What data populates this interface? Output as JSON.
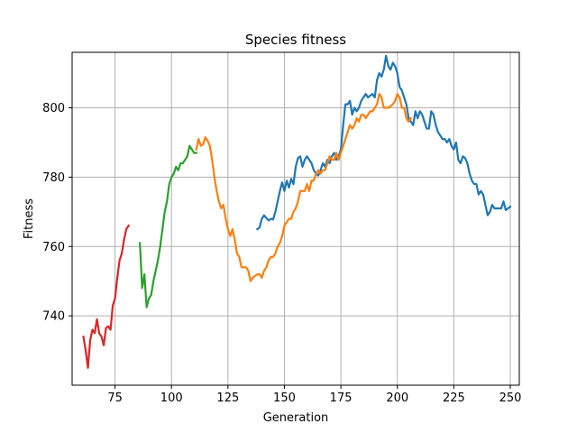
{
  "chart_data": {
    "type": "line",
    "title": "Species fitness",
    "xlabel": "Generation",
    "ylabel": "Fitness",
    "xlim": [
      56,
      254
    ],
    "ylim": [
      720,
      816
    ],
    "xticks": [
      75,
      100,
      125,
      150,
      175,
      200,
      225,
      250
    ],
    "yticks": [
      740,
      760,
      780,
      800
    ],
    "grid": true,
    "legend": "none",
    "series": [
      {
        "color": "#1f77b4",
        "points": [
          [
            138,
            765
          ],
          [
            139,
            765.5
          ],
          [
            140,
            768
          ],
          [
            141,
            769
          ],
          [
            142,
            768.2
          ],
          [
            143,
            767.5
          ],
          [
            144,
            768
          ],
          [
            145,
            767.8
          ],
          [
            146,
            770
          ],
          [
            147,
            773
          ],
          [
            148,
            776
          ],
          [
            149,
            778.5
          ],
          [
            150,
            776
          ],
          [
            151,
            779
          ],
          [
            152,
            777
          ],
          [
            153,
            779.5
          ],
          [
            154,
            778
          ],
          [
            155,
            783
          ],
          [
            156,
            785.5
          ],
          [
            157,
            786
          ],
          [
            158,
            783
          ],
          [
            159,
            785
          ],
          [
            160,
            786
          ],
          [
            161,
            785
          ],
          [
            162,
            784
          ],
          [
            163,
            782
          ],
          [
            164,
            781
          ],
          [
            165,
            780.5
          ],
          [
            166,
            782
          ],
          [
            167,
            784
          ],
          [
            168,
            783
          ],
          [
            169,
            785
          ],
          [
            170,
            784
          ],
          [
            171,
            786
          ],
          [
            172,
            787
          ],
          [
            173,
            785
          ],
          [
            174,
            786
          ],
          [
            175,
            788
          ],
          [
            176,
            795
          ],
          [
            177,
            801
          ],
          [
            178,
            801
          ],
          [
            179,
            802
          ],
          [
            180,
            798
          ],
          [
            181,
            800
          ],
          [
            182,
            799
          ],
          [
            183,
            800
          ],
          [
            184,
            802
          ],
          [
            185,
            803
          ],
          [
            186,
            804
          ],
          [
            187,
            803
          ],
          [
            188,
            803.5
          ],
          [
            189,
            804
          ],
          [
            190,
            803
          ],
          [
            191,
            808
          ],
          [
            192,
            810
          ],
          [
            193,
            809
          ],
          [
            194,
            811
          ],
          [
            195,
            815
          ],
          [
            196,
            812
          ],
          [
            197,
            811
          ],
          [
            198,
            813
          ],
          [
            199,
            812
          ],
          [
            200,
            810
          ],
          [
            201,
            806
          ],
          [
            202,
            805
          ],
          [
            203,
            803
          ],
          [
            204,
            801
          ],
          [
            205,
            797
          ],
          [
            206,
            796
          ],
          [
            207,
            795
          ],
          [
            208,
            799
          ],
          [
            209,
            797
          ],
          [
            210,
            799
          ],
          [
            211,
            798
          ],
          [
            212,
            796
          ],
          [
            213,
            794
          ],
          [
            214,
            794
          ],
          [
            215,
            799
          ],
          [
            216,
            798
          ],
          [
            217,
            795
          ],
          [
            218,
            793
          ],
          [
            219,
            792
          ],
          [
            220,
            791
          ],
          [
            221,
            791
          ],
          [
            222,
            790
          ],
          [
            223,
            791
          ],
          [
            224,
            789
          ],
          [
            225,
            788
          ],
          [
            226,
            790
          ],
          [
            227,
            785
          ],
          [
            228,
            784
          ],
          [
            229,
            786
          ],
          [
            230,
            785.5
          ],
          [
            231,
            784
          ],
          [
            232,
            781
          ],
          [
            233,
            779
          ],
          [
            234,
            778
          ],
          [
            235,
            778
          ],
          [
            236,
            775
          ],
          [
            237,
            776
          ],
          [
            238,
            775
          ],
          [
            239,
            772
          ],
          [
            240,
            769
          ],
          [
            241,
            770
          ],
          [
            242,
            772
          ],
          [
            243,
            771
          ],
          [
            244,
            771
          ],
          [
            245,
            771
          ],
          [
            246,
            771
          ],
          [
            247,
            773
          ],
          [
            248,
            770.5
          ],
          [
            249,
            771
          ],
          [
            250,
            771.5
          ]
        ]
      },
      {
        "color": "#ff7f0e",
        "points": [
          [
            111,
            788
          ],
          [
            112,
            791
          ],
          [
            113,
            789
          ],
          [
            114,
            789.5
          ],
          [
            115,
            791.5
          ],
          [
            116,
            790.5
          ],
          [
            117,
            789
          ],
          [
            118,
            785
          ],
          [
            119,
            780
          ],
          [
            120,
            776
          ],
          [
            121,
            773
          ],
          [
            122,
            771
          ],
          [
            123,
            772
          ],
          [
            124,
            768
          ],
          [
            125,
            765
          ],
          [
            126,
            763
          ],
          [
            127,
            765
          ],
          [
            128,
            762
          ],
          [
            129,
            758
          ],
          [
            130,
            757
          ],
          [
            131,
            754
          ],
          [
            132,
            754
          ],
          [
            133,
            754
          ],
          [
            134,
            753
          ],
          [
            135,
            750
          ],
          [
            136,
            751
          ],
          [
            137,
            751.5
          ],
          [
            138,
            752
          ],
          [
            139,
            752
          ],
          [
            140,
            751
          ],
          [
            141,
            753
          ],
          [
            142,
            754
          ],
          [
            143,
            756
          ],
          [
            144,
            757
          ],
          [
            145,
            757
          ],
          [
            146,
            758
          ],
          [
            147,
            760
          ],
          [
            148,
            761
          ],
          [
            149,
            763
          ],
          [
            150,
            766
          ],
          [
            151,
            767
          ],
          [
            152,
            768
          ],
          [
            153,
            768
          ],
          [
            154,
            770
          ],
          [
            155,
            771
          ],
          [
            156,
            773
          ],
          [
            157,
            776
          ],
          [
            158,
            776
          ],
          [
            159,
            776
          ],
          [
            160,
            778
          ],
          [
            161,
            776
          ],
          [
            162,
            779
          ],
          [
            163,
            779
          ],
          [
            164,
            781
          ],
          [
            165,
            782
          ],
          [
            166,
            781
          ],
          [
            167,
            782
          ],
          [
            168,
            782
          ],
          [
            169,
            784
          ],
          [
            170,
            786
          ],
          [
            171,
            785
          ],
          [
            172,
            785
          ],
          [
            173,
            787
          ],
          [
            174,
            785
          ],
          [
            175,
            787
          ],
          [
            176,
            789
          ],
          [
            177,
            791
          ],
          [
            178,
            793
          ],
          [
            179,
            795
          ],
          [
            180,
            794
          ],
          [
            181,
            795
          ],
          [
            182,
            797
          ],
          [
            183,
            796
          ],
          [
            184,
            798
          ],
          [
            185,
            798
          ],
          [
            186,
            797
          ],
          [
            187,
            798
          ],
          [
            188,
            799
          ],
          [
            189,
            799
          ],
          [
            190,
            800
          ],
          [
            191,
            801
          ],
          [
            192,
            804
          ],
          [
            193,
            803
          ],
          [
            194,
            800
          ],
          [
            195,
            800
          ],
          [
            196,
            800
          ],
          [
            197,
            800.5
          ],
          [
            198,
            801
          ],
          [
            199,
            802
          ],
          [
            200,
            804
          ],
          [
            201,
            803
          ],
          [
            202,
            800
          ],
          [
            203,
            800
          ],
          [
            204,
            797
          ],
          [
            205,
            796
          ],
          [
            206,
            797
          ]
        ]
      },
      {
        "color": "#2ca02c",
        "points": [
          [
            86,
            761
          ],
          [
            87,
            748
          ],
          [
            88,
            752
          ],
          [
            89,
            742.5
          ],
          [
            90,
            745
          ],
          [
            91,
            746
          ],
          [
            92,
            750
          ],
          [
            93,
            753
          ],
          [
            94,
            756
          ],
          [
            95,
            760
          ],
          [
            96,
            765
          ],
          [
            97,
            770
          ],
          [
            98,
            773
          ],
          [
            99,
            778
          ],
          [
            100,
            780
          ],
          [
            101,
            781
          ],
          [
            102,
            783
          ],
          [
            103,
            782
          ],
          [
            104,
            784
          ],
          [
            105,
            784
          ],
          [
            106,
            785
          ],
          [
            107,
            786
          ],
          [
            108,
            789
          ],
          [
            109,
            788
          ],
          [
            110,
            787
          ],
          [
            111,
            787
          ]
        ]
      },
      {
        "color": "#d62728",
        "points": [
          [
            61,
            734
          ],
          [
            62,
            730
          ],
          [
            63,
            725
          ],
          [
            64,
            733
          ],
          [
            65,
            736
          ],
          [
            66,
            735
          ],
          [
            67,
            739
          ],
          [
            68,
            735
          ],
          [
            69,
            734
          ],
          [
            70,
            731.5
          ],
          [
            71,
            736.5
          ],
          [
            72,
            737
          ],
          [
            73,
            736
          ],
          [
            74,
            743
          ],
          [
            75,
            745
          ],
          [
            76,
            751
          ],
          [
            77,
            756
          ],
          [
            78,
            758
          ],
          [
            79,
            762
          ],
          [
            80,
            765
          ],
          [
            81,
            766
          ]
        ]
      }
    ]
  }
}
